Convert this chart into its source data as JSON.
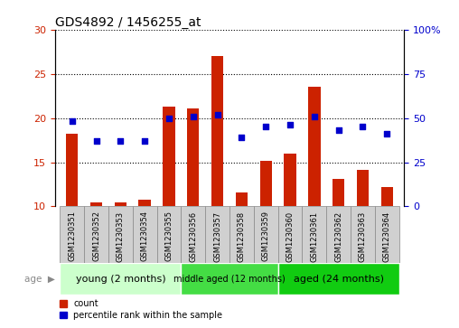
{
  "title": "GDS4892 / 1456255_at",
  "samples": [
    "GSM1230351",
    "GSM1230352",
    "GSM1230353",
    "GSM1230354",
    "GSM1230355",
    "GSM1230356",
    "GSM1230357",
    "GSM1230358",
    "GSM1230359",
    "GSM1230360",
    "GSM1230361",
    "GSM1230362",
    "GSM1230363",
    "GSM1230364"
  ],
  "counts": [
    18.2,
    10.5,
    10.5,
    10.8,
    21.3,
    21.1,
    27.0,
    11.6,
    15.2,
    16.0,
    23.5,
    13.1,
    14.1,
    12.2
  ],
  "percentiles": [
    48,
    37,
    37,
    37,
    50,
    51,
    52,
    39,
    45,
    46,
    51,
    43,
    45,
    41
  ],
  "bar_color": "#cc2200",
  "dot_color": "#0000cc",
  "ylim_left": [
    10,
    30
  ],
  "ylim_right": [
    0,
    100
  ],
  "yticks_left": [
    10,
    15,
    20,
    25,
    30
  ],
  "yticks_right": [
    0,
    25,
    50,
    75,
    100
  ],
  "groups": [
    {
      "label": "young (2 months)",
      "start": 0,
      "end": 5,
      "color_light": "#ccffcc",
      "color_dark": "#88ee88"
    },
    {
      "label": "middle aged (12 months)",
      "start": 5,
      "end": 9,
      "color_light": "#44dd44",
      "color_dark": "#33cc33"
    },
    {
      "label": "aged (24 months)",
      "start": 9,
      "end": 14,
      "color_light": "#22cc22",
      "color_dark": "#11bb11"
    }
  ],
  "group_colors": [
    "#c8f5c8",
    "#44cc44",
    "#22bb22"
  ],
  "age_label": "age",
  "legend_count_label": "count",
  "legend_percentile_label": "percentile rank within the sample",
  "grid_color": "#000000",
  "background_color": "#ffffff",
  "bar_width": 0.5,
  "tick_bg_color": "#d0d0d0",
  "tick_border_color": "#888888"
}
